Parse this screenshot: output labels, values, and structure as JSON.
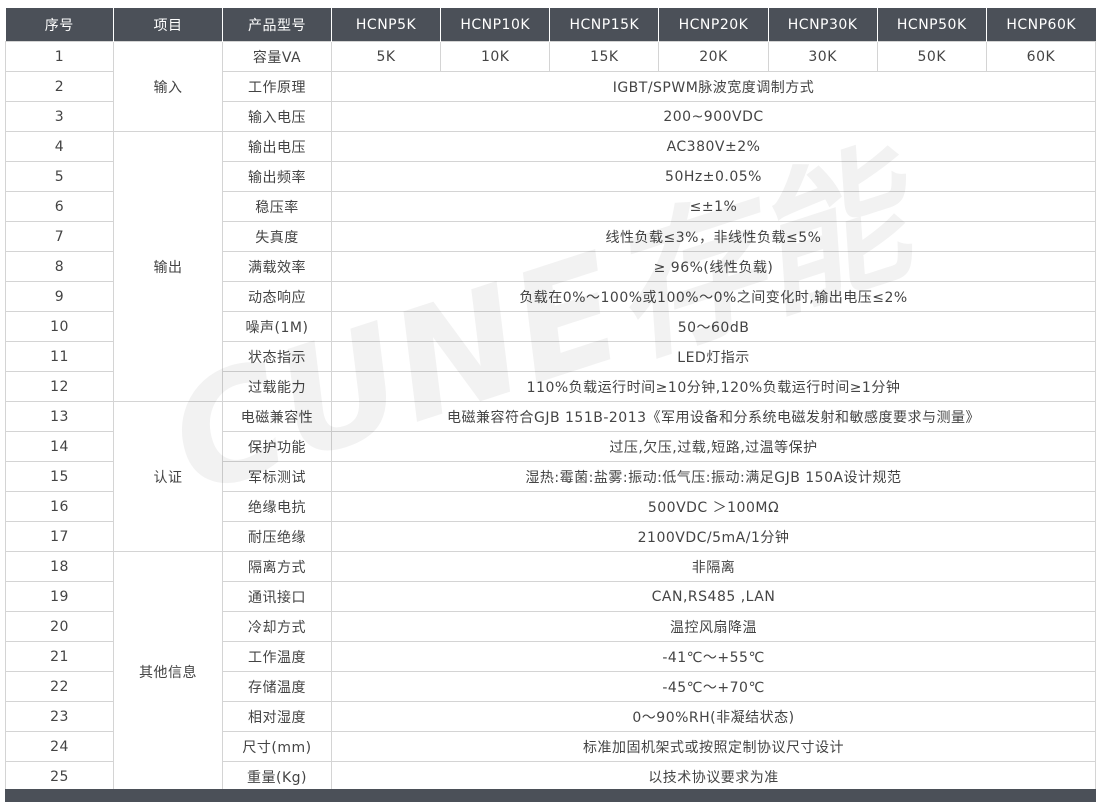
{
  "watermark": "CUNE存能",
  "table": {
    "header": [
      "序号",
      "项目",
      "产品型号",
      "HCNP5K",
      "HCNP10K",
      "HCNP15K",
      "HCNP20K",
      "HCNP30K",
      "HCNP50K",
      "HCNP60K"
    ],
    "groups": [
      {
        "label": "输入",
        "rows": [
          {
            "no": 1,
            "item": "容量VA",
            "values": [
              "5K",
              "10K",
              "15K",
              "20K",
              "30K",
              "50K",
              "60K"
            ]
          },
          {
            "no": 2,
            "item": "工作原理",
            "value": "IGBT/SPWM脉波宽度调制方式"
          },
          {
            "no": 3,
            "item": "输入电压",
            "value": "200~900VDC"
          }
        ]
      },
      {
        "label": "输出",
        "rows": [
          {
            "no": 4,
            "item": "输出电压",
            "value": "AC380V±2%"
          },
          {
            "no": 5,
            "item": "输出频率",
            "value": "50Hz±0.05%"
          },
          {
            "no": 6,
            "item": "稳压率",
            "value": "≤±1%"
          },
          {
            "no": 7,
            "item": "失真度",
            "value": "线性负载≤3%，非线性负载≤5%"
          },
          {
            "no": 8,
            "item": "满载效率",
            "value": "≥ 96%(线性负载)"
          },
          {
            "no": 9,
            "item": "动态响应",
            "value": "负载在0%～100%或100%～0%之间变化时,输出电压≤2%"
          },
          {
            "no": 10,
            "item": "噪声(1M)",
            "value": "50～60dB"
          },
          {
            "no": 11,
            "item": "状态指示",
            "value": "LED灯指示"
          },
          {
            "no": 12,
            "item": "过载能力",
            "value": "110%负载运行时间≥10分钟,120%负载运行时间≥1分钟"
          }
        ]
      },
      {
        "label": "认证",
        "rows": [
          {
            "no": 13,
            "item": "电磁兼容性",
            "value": "电磁兼容符合GJB 151B-2013《军用设备和分系统电磁发射和敏感度要求与测量》"
          },
          {
            "no": 14,
            "item": "保护功能",
            "value": "过压,欠压,过载,短路,过温等保护"
          },
          {
            "no": 15,
            "item": "军标测试",
            "value": "湿热:霉菌:盐雾:振动:低气压:振动:满足GJB 150A设计规范"
          },
          {
            "no": 16,
            "item": "绝缘电抗",
            "value": "500VDC ＞100MΩ"
          },
          {
            "no": 17,
            "item": "耐压绝缘",
            "value": "2100VDC/5mA/1分钟"
          }
        ]
      },
      {
        "label": "其他信息",
        "rows": [
          {
            "no": 18,
            "item": "隔离方式",
            "value": "非隔离"
          },
          {
            "no": 19,
            "item": "通讯接口",
            "value": "CAN,RS485 ,LAN"
          },
          {
            "no": 20,
            "item": "冷却方式",
            "value": "温控风扇降温"
          },
          {
            "no": 21,
            "item": "工作温度",
            "value": "-41℃～+55℃"
          },
          {
            "no": 22,
            "item": "存储温度",
            "value": "-45℃～+70℃"
          },
          {
            "no": 23,
            "item": "相对湿度",
            "value": "0～90%RH(非凝结状态)"
          },
          {
            "no": 24,
            "item": "尺寸(mm)",
            "value": "标准加固机架式或按照定制协议尺寸设计"
          },
          {
            "no": 25,
            "item": "重量(Kg)",
            "value": "以技术协议要求为准"
          }
        ]
      }
    ]
  }
}
